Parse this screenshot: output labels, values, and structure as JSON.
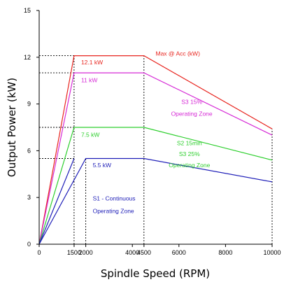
{
  "chart_data": {
    "type": "line",
    "xlabel": "Spindle Speed (RPM)",
    "ylabel": "Output Power (kW)",
    "xlim": [
      0,
      10000
    ],
    "ylim": [
      0,
      15
    ],
    "x_ticks": [
      {
        "value": 0,
        "label": "0"
      },
      {
        "value": 1500,
        "label": "1500"
      },
      {
        "value": 2000,
        "label": "2000"
      },
      {
        "value": 4000,
        "label": "4000"
      },
      {
        "value": 4500,
        "label": "4500"
      },
      {
        "value": 6000,
        "label": "6000"
      },
      {
        "value": 8000,
        "label": "8000"
      },
      {
        "value": 10000,
        "label": "10000"
      }
    ],
    "y_ticks": [
      {
        "value": 0,
        "label": "0"
      },
      {
        "value": 3,
        "label": "3"
      },
      {
        "value": 6,
        "label": "6"
      },
      {
        "value": 9,
        "label": "9"
      },
      {
        "value": 12,
        "label": "12"
      },
      {
        "value": 15,
        "label": "15"
      }
    ],
    "series": [
      {
        "color": "#e8251f",
        "points": [
          [
            0,
            0
          ],
          [
            1500,
            12.1
          ],
          [
            4500,
            12.1
          ],
          [
            10000,
            7.4
          ]
        ]
      },
      {
        "color": "#d62ad6",
        "points": [
          [
            0,
            0
          ],
          [
            1500,
            11
          ],
          [
            4500,
            11
          ],
          [
            10000,
            7.0
          ]
        ]
      },
      {
        "color": "#2ecf2e",
        "points": [
          [
            0,
            0
          ],
          [
            1500,
            7.5
          ],
          [
            4500,
            7.5
          ],
          [
            10000,
            5.4
          ]
        ]
      },
      {
        "color": "#1f1fb8",
        "points": [
          [
            0,
            0
          ],
          [
            1500,
            5.5
          ]
        ]
      },
      {
        "color": "#1f1fb8",
        "points": [
          [
            0,
            0
          ],
          [
            2000,
            5.5
          ],
          [
            4500,
            5.5
          ],
          [
            10000,
            4.0
          ]
        ]
      }
    ],
    "guide_lines": [
      {
        "points": [
          [
            0,
            12.1
          ],
          [
            1500,
            12.1
          ]
        ]
      },
      {
        "points": [
          [
            0,
            11
          ],
          [
            1500,
            11
          ]
        ]
      },
      {
        "points": [
          [
            0,
            7.5
          ],
          [
            1500,
            7.5
          ]
        ]
      },
      {
        "points": [
          [
            0,
            5.5
          ],
          [
            1500,
            5.5
          ]
        ]
      },
      {
        "points": [
          [
            1500,
            0
          ],
          [
            1500,
            12.1
          ]
        ]
      },
      {
        "points": [
          [
            2000,
            0
          ],
          [
            2000,
            5.5
          ]
        ]
      },
      {
        "points": [
          [
            4500,
            0
          ],
          [
            4500,
            12.1
          ]
        ]
      },
      {
        "points": [
          [
            10000,
            0
          ],
          [
            10000,
            7.4
          ]
        ]
      }
    ],
    "annotations": [
      {
        "text": "12.1 kW",
        "x": 1800,
        "y": 11.55,
        "color": "#e8251f",
        "anchor": "start"
      },
      {
        "text": "Max @ Acc (kW)",
        "x": 5000,
        "y": 12.1,
        "color": "#e8251f",
        "anchor": "start"
      },
      {
        "text": "11 kW",
        "x": 1800,
        "y": 10.4,
        "color": "#d62ad6",
        "anchor": "start"
      },
      {
        "text": "S3 15%",
        "x": 6550,
        "y": 9.0,
        "color": "#d62ad6",
        "anchor": "middle"
      },
      {
        "text": "Operating Zone",
        "x": 6550,
        "y": 8.25,
        "color": "#d62ad6",
        "anchor": "middle"
      },
      {
        "text": "7.5 kW",
        "x": 1800,
        "y": 6.9,
        "color": "#2ecf2e",
        "anchor": "start"
      },
      {
        "text": "S2 15min",
        "x": 6450,
        "y": 6.35,
        "color": "#2ecf2e",
        "anchor": "middle"
      },
      {
        "text": "S3 25%",
        "x": 6450,
        "y": 5.65,
        "color": "#2ecf2e",
        "anchor": "middle"
      },
      {
        "text": "Operating Zone",
        "x": 6450,
        "y": 4.95,
        "color": "#2ecf2e",
        "anchor": "middle"
      },
      {
        "text": "5.5 kW",
        "x": 2300,
        "y": 4.95,
        "color": "#1f1fb8",
        "anchor": "start"
      },
      {
        "text": "S1 - Continuous",
        "x": 2300,
        "y": 2.8,
        "color": "#1f1fb8",
        "anchor": "start"
      },
      {
        "text": "Operating Zone",
        "x": 2300,
        "y": 2.0,
        "color": "#1f1fb8",
        "anchor": "start"
      }
    ]
  }
}
